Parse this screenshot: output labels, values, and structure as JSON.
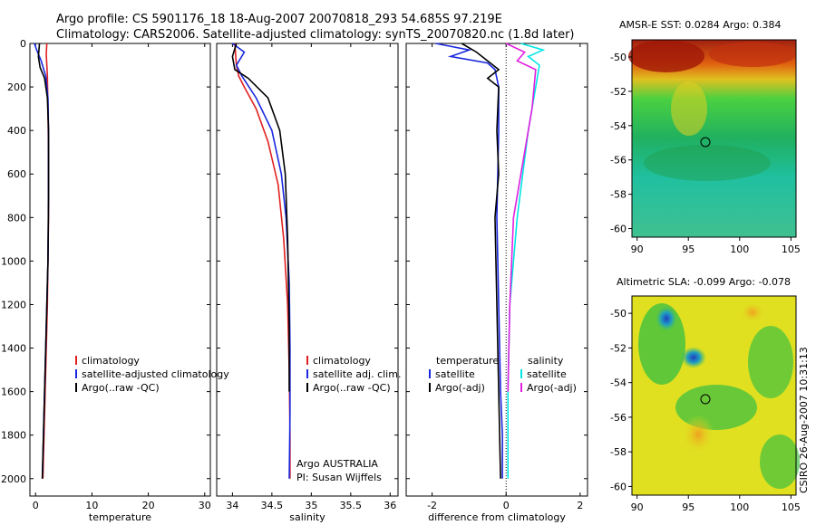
{
  "title_line1": "Argo profile: CS 5901176_18 18-Aug-2007 20070818_293 54.685S 97.219E",
  "title_line2": "Climatology: CARS2006. Satellite-adjusted climatology: synTS_20070820.nc (1.8d later)",
  "side_stamp": "CSIRO 26-Aug-2007 10:31:13",
  "colors": {
    "climatology": "#e02020",
    "satellite": "#1a28e0",
    "argo": "#000000",
    "sat_sal": "#00e6e6",
    "argo_adj_sal": "#e020e0"
  },
  "chart_data": [
    {
      "type": "line",
      "id": "temperature",
      "xlabel": "temperature",
      "xlim": [
        -1,
        31
      ],
      "xticks": [
        0,
        10,
        20,
        30
      ],
      "ylim": [
        2080,
        0
      ],
      "yticks": [
        0,
        200,
        400,
        600,
        800,
        1000,
        1200,
        1400,
        1600,
        1800,
        2000
      ],
      "legend": [
        "climatology",
        "satellite-adjusted climatology",
        "Argo(..raw -QC)"
      ],
      "series": [
        {
          "name": "climatology",
          "color": "#e02020",
          "x": [
            2.0,
            1.9,
            2.0,
            2.1,
            2.2,
            2.3,
            2.3,
            2.2,
            2.1,
            1.9,
            1.7,
            1.5,
            1.3
          ],
          "y": [
            0,
            50,
            100,
            150,
            300,
            500,
            800,
            1000,
            1200,
            1400,
            1600,
            1800,
            2000
          ]
        },
        {
          "name": "satellite-adjusted climatology",
          "color": "#1a28e0",
          "x": [
            -0.2,
            0.2,
            1.0,
            1.8,
            2.2,
            2.3,
            2.3,
            2.2,
            2.0,
            1.8,
            1.6,
            1.4,
            1.2
          ],
          "y": [
            0,
            30,
            80,
            150,
            250,
            400,
            700,
            1000,
            1200,
            1400,
            1600,
            1800,
            2000
          ]
        },
        {
          "name": "Argo(..raw -QC)",
          "color": "#000000",
          "x": [
            0.7,
            0.5,
            0.8,
            1.6,
            2.1,
            2.3,
            2.3,
            2.2,
            2.0,
            1.8,
            1.6,
            1.4,
            1.2
          ],
          "y": [
            0,
            60,
            110,
            160,
            250,
            400,
            700,
            1000,
            1200,
            1400,
            1600,
            1800,
            2000
          ]
        }
      ]
    },
    {
      "type": "line",
      "id": "salinity",
      "xlabel": "salinity",
      "xlim": [
        33.8,
        36.1
      ],
      "xticks": [
        34,
        34.5,
        35,
        35.5,
        36
      ],
      "xticklabels": [
        "34",
        "34.5",
        "35",
        "35.5",
        "36"
      ],
      "ylim": [
        2080,
        0
      ],
      "legend": [
        "climatology",
        "satellite adj. clim.",
        "Argo(..raw -QC)"
      ],
      "annotation": [
        "Argo AUSTRALIA",
        "PI: Susan Wijffels"
      ],
      "series": [
        {
          "name": "climatology",
          "color": "#e02020",
          "x": [
            34.03,
            34.05,
            34.08,
            34.15,
            34.3,
            34.45,
            34.58,
            34.65,
            34.7,
            34.72,
            34.73,
            34.73
          ],
          "y": [
            0,
            100,
            150,
            200,
            300,
            450,
            650,
            900,
            1200,
            1500,
            1800,
            2000
          ]
        },
        {
          "name": "satellite adj. clim.",
          "color": "#1a28e0",
          "x": [
            34.0,
            34.15,
            34.05,
            34.12,
            34.3,
            34.5,
            34.62,
            34.68,
            34.72,
            34.73,
            34.73,
            34.72
          ],
          "y": [
            0,
            40,
            100,
            150,
            250,
            400,
            600,
            800,
            1100,
            1400,
            1700,
            2000
          ]
        },
        {
          "name": "Argo(..raw -QC)",
          "color": "#000000",
          "x": [
            34.05,
            34.0,
            34.03,
            34.2,
            34.45,
            34.6,
            34.67,
            34.7,
            34.72,
            34.72
          ],
          "y": [
            0,
            60,
            120,
            160,
            250,
            400,
            600,
            900,
            1300,
            1600
          ]
        }
      ]
    },
    {
      "type": "line",
      "id": "difference",
      "xlabel": "difference from climatology",
      "xlim": [
        -2.7,
        2.2
      ],
      "xticks": [
        -2,
        0,
        2
      ],
      "ylim": [
        2080,
        0
      ],
      "legend_left_title": "temperature",
      "legend_right_title": "salinity",
      "legend_left": [
        "satellite",
        "Argo(-adj)"
      ],
      "legend_right": [
        "satellite",
        "Argo(-adj)"
      ],
      "series": [
        {
          "name": "temperature satellite",
          "color": "#1a28e0",
          "x": [
            -1.9,
            -1.0,
            -1.5,
            -0.5,
            -0.3,
            -0.2,
            -0.2,
            -0.25,
            -0.2,
            -0.15,
            -0.1,
            -0.1
          ],
          "y": [
            0,
            30,
            60,
            90,
            120,
            200,
            400,
            800,
            1200,
            1600,
            1800,
            2000
          ]
        },
        {
          "name": "temperature Argo(-adj)",
          "color": "#000000",
          "x": [
            -1.2,
            -0.8,
            -0.5,
            -0.2,
            -0.5,
            -0.2,
            -0.25,
            -0.2,
            -0.3,
            -0.25,
            -0.2,
            -0.15
          ],
          "y": [
            0,
            40,
            80,
            120,
            160,
            200,
            400,
            600,
            800,
            1200,
            1600,
            2000
          ]
        },
        {
          "name": "salinity satellite",
          "color": "#00e6e6",
          "x": [
            0.4,
            1.0,
            0.6,
            0.9,
            0.8,
            0.6,
            0.3,
            0.1,
            0.05,
            0.05
          ],
          "y": [
            0,
            30,
            60,
            100,
            200,
            400,
            800,
            1200,
            1600,
            2000
          ]
        },
        {
          "name": "salinity Argo(-adj)",
          "color": "#e020e0",
          "x": [
            0.0,
            0.5,
            0.3,
            0.8,
            0.7,
            0.5,
            0.2,
            0.1,
            0.05
          ],
          "y": [
            0,
            40,
            80,
            120,
            300,
            500,
            800,
            1200,
            1600
          ]
        }
      ]
    },
    {
      "type": "heatmap",
      "id": "sst",
      "title": "AMSR-E SST: 0.0284 Argo: 0.384",
      "xticks": [
        90,
        95,
        100,
        105
      ],
      "yticks": [
        -50,
        -52,
        -54,
        -56,
        -58,
        -60
      ],
      "xlim": [
        89.5,
        105.5
      ],
      "ylim": [
        -60.5,
        -49
      ]
    },
    {
      "type": "heatmap",
      "id": "sla",
      "title": "Altimetric SLA: -0.099 Argo: -0.078",
      "xticks": [
        90,
        95,
        100,
        105
      ],
      "yticks": [
        -50,
        -52,
        -54,
        -56,
        -58,
        -60
      ],
      "xlim": [
        89.5,
        105.5
      ],
      "ylim": [
        -60.5,
        -49
      ]
    }
  ]
}
